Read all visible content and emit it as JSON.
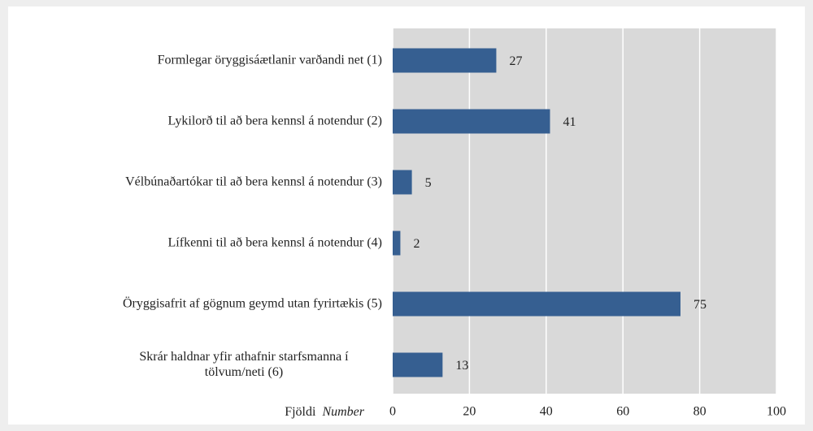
{
  "chart_data": {
    "type": "bar",
    "orientation": "horizontal",
    "categories": [
      "Formlegar öryggisáætlanir varðandi net (1)",
      "Lykilorð til að bera kennsl á notendur (2)",
      "Vélbúnaðartókar til að bera kennsl á notendur (3)",
      "Lífkenni til að bera kennsl á notendur (4)",
      "Öryggisafrit af gögnum geymd utan fyrirtækis (5)",
      "Skrár haldnar yfir athafnir starfsmanna í\ntölvum/neti (6)"
    ],
    "values": [
      27,
      41,
      5,
      2,
      75,
      13
    ],
    "color": "#365f91",
    "xlabel": [
      "Fjöldi",
      "Number"
    ],
    "xlim": [
      0,
      100
    ],
    "xticks": [
      0,
      20,
      40,
      60,
      80,
      100
    ],
    "grid": true
  }
}
